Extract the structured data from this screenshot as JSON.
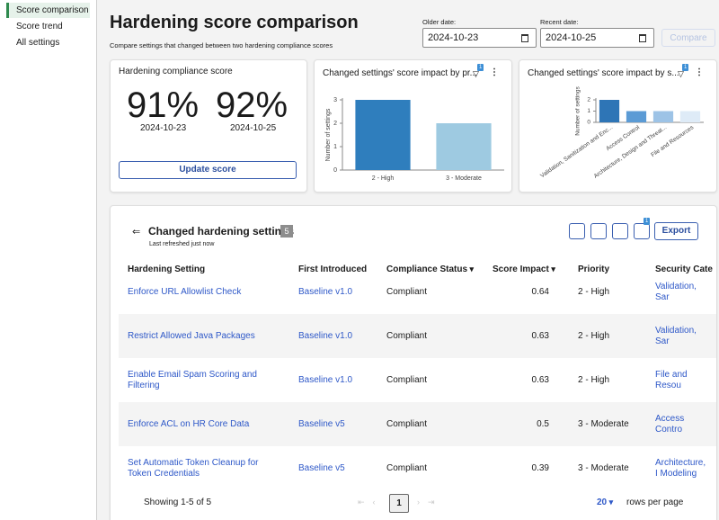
{
  "sidebar": {
    "items": [
      "Score comparison",
      "Score trend",
      "All settings"
    ]
  },
  "header": {
    "title": "Hardening score comparison",
    "subtitle": "Compare settings that changed between two hardening compliance scores"
  },
  "dates": {
    "older_label": "Older date:",
    "older_value": "2024-10-23",
    "recent_label": "Recent date:",
    "recent_value": "2024-10-25",
    "compare": "Compare"
  },
  "score_card": {
    "title": "Hardening compliance score",
    "scores": [
      {
        "value": "91%",
        "date": "2024-10-23"
      },
      {
        "value": "92%",
        "date": "2024-10-25"
      }
    ],
    "button": "Update score"
  },
  "charts": [
    {
      "type": "bar",
      "title": "Changed settings' score impact by pr...",
      "filter_badge": "1",
      "y_label": "Number of settings",
      "categories": [
        "2 - High",
        "3 - Moderate"
      ],
      "values": [
        3,
        2
      ],
      "colors": [
        "#2f7ebd",
        "#9ecae1"
      ],
      "ylim": [
        0,
        3
      ],
      "yticks": [
        0,
        1,
        2,
        3
      ],
      "grid": false
    },
    {
      "type": "bar",
      "title": "Changed settings' score impact by s...",
      "filter_badge": "1",
      "y_label": "Number of settings",
      "categories": [
        "Validation, Sanitization and Enc...",
        "Access Control",
        "Architecture, Design and Threat...",
        "File and Resources"
      ],
      "values": [
        2,
        1,
        1,
        1
      ],
      "colors": [
        "#2e75b6",
        "#5b9bd5",
        "#9dc3e6",
        "#deebf7"
      ],
      "ylim": [
        0,
        2
      ],
      "yticks": [
        0,
        1,
        2
      ],
      "grid": false
    }
  ],
  "table": {
    "title": "Changed hardening settings",
    "count": 5,
    "refreshed": "Last refreshed just now",
    "filter_badge": "1",
    "export": "Export",
    "columns": [
      "Hardening Setting",
      "First Introduced",
      "Compliance Status",
      "Score Impact",
      "Priority",
      "Security Cate"
    ],
    "rows": [
      [
        "Enforce URL Allowlist Check",
        "Baseline v1.0",
        "Compliant",
        0.64,
        "2 - High",
        "Validation, Sar"
      ],
      [
        "Restrict Allowed Java Packages",
        "Baseline v1.0",
        "Compliant",
        0.63,
        "2 - High",
        "Validation, Sar"
      ],
      [
        "Enable Email Spam Scoring and Filtering",
        "Baseline v1.0",
        "Compliant",
        0.63,
        "2 - High",
        "File and Resou"
      ],
      [
        "Enforce ACL on HR Core Data",
        "Baseline v5",
        "Compliant",
        0.5,
        "3 - Moderate",
        "Access Contro"
      ],
      [
        "Set Automatic Token Cleanup for Token Credentials",
        "Baseline v5",
        "Compliant",
        0.39,
        "3 - Moderate",
        "Architecture, I Modeling"
      ]
    ]
  },
  "footer": {
    "showing": "Showing 1-5 of 5",
    "page": 1,
    "page_size": 20,
    "rows_per_page": "rows per page"
  }
}
